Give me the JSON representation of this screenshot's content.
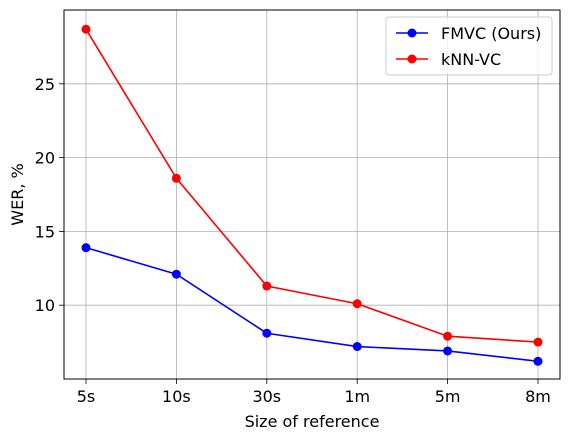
{
  "chart_data": {
    "type": "line",
    "categories": [
      "5s",
      "10s",
      "30s",
      "1m",
      "5m",
      "8m"
    ],
    "series": [
      {
        "name": "FMVC (Ours)",
        "color": "#0000ff",
        "values": [
          13.9,
          12.1,
          8.1,
          7.2,
          6.9,
          6.2
        ]
      },
      {
        "name": "kNN-VC",
        "color": "#ff0000",
        "values": [
          28.7,
          18.6,
          11.3,
          10.1,
          7.9,
          7.5
        ]
      }
    ],
    "xlabel": "Size of reference",
    "ylabel": "WER, %",
    "ylim": [
      5.0,
      30.0
    ],
    "yticks": [
      10,
      15,
      20,
      25
    ],
    "grid": true,
    "legend_position": "top-right"
  }
}
